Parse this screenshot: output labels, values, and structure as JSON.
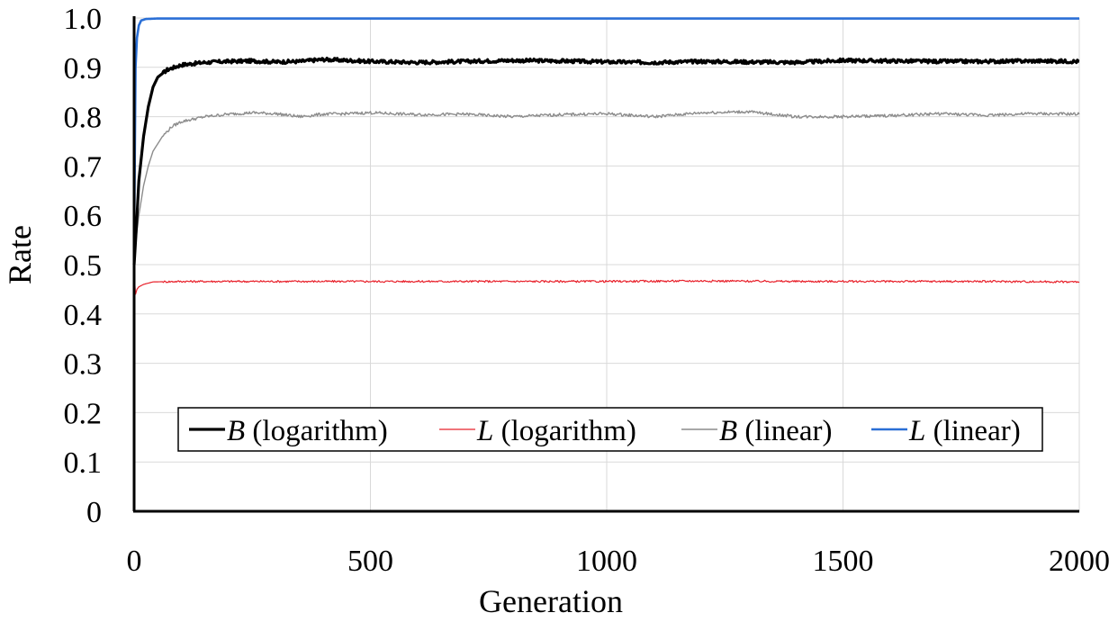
{
  "chart_data": {
    "type": "line",
    "xlabel": "Generation",
    "ylabel": "Rate",
    "xlim": [
      0,
      2000
    ],
    "ylim": [
      0,
      1.0
    ],
    "x_ticks": [
      0,
      500,
      1000,
      1500,
      2000
    ],
    "x_tick_labels": [
      "0",
      "500",
      "1000",
      "1500",
      "2000"
    ],
    "y_ticks": [
      0,
      0.1,
      0.2,
      0.3,
      0.4,
      0.5,
      0.6,
      0.7,
      0.8,
      0.9,
      1.0
    ],
    "y_tick_labels": [
      "0",
      "0.1",
      "0.2",
      "0.3",
      "0.4",
      "0.5",
      "0.6",
      "0.7",
      "0.8",
      "0.9",
      "1.0"
    ],
    "grid": true,
    "legend_position": "bottom-center",
    "series": [
      {
        "name": "B (logarithm)",
        "legend_letter": "B",
        "legend_rest": " (logarithm)",
        "color": "#000000",
        "x": [
          0,
          5,
          10,
          20,
          30,
          40,
          50,
          70,
          100,
          150,
          200,
          250,
          300,
          350,
          400,
          450,
          500,
          600,
          700,
          800,
          900,
          1000,
          1100,
          1200,
          1300,
          1400,
          1500,
          1600,
          1700,
          1800,
          1900,
          2000
        ],
        "y": [
          0.5,
          0.58,
          0.67,
          0.76,
          0.82,
          0.86,
          0.88,
          0.895,
          0.905,
          0.91,
          0.912,
          0.913,
          0.911,
          0.912,
          0.916,
          0.914,
          0.912,
          0.91,
          0.912,
          0.914,
          0.913,
          0.911,
          0.91,
          0.912,
          0.911,
          0.91,
          0.914,
          0.913,
          0.912,
          0.912,
          0.913,
          0.912
        ]
      },
      {
        "name": "L (logarithm)",
        "legend_letter": "L",
        "legend_rest": " (logarithm)",
        "color": "#e8202a",
        "x": [
          0,
          3,
          6,
          10,
          20,
          40,
          100,
          200,
          400,
          600,
          800,
          1000,
          1200,
          1400,
          1600,
          1800,
          2000
        ],
        "y": [
          0.48,
          0.44,
          0.45,
          0.455,
          0.46,
          0.465,
          0.466,
          0.466,
          0.466,
          0.466,
          0.466,
          0.466,
          0.467,
          0.466,
          0.466,
          0.466,
          0.465
        ]
      },
      {
        "name": "B (linear)",
        "legend_letter": "B",
        "legend_rest": " (linear)",
        "color": "#8c8c8c",
        "x": [
          0,
          5,
          10,
          20,
          30,
          40,
          60,
          80,
          100,
          150,
          200,
          250,
          300,
          350,
          400,
          450,
          500,
          600,
          700,
          800,
          900,
          1000,
          1100,
          1200,
          1300,
          1400,
          1500,
          1600,
          1700,
          1800,
          1900,
          2000
        ],
        "y": [
          0.5,
          0.56,
          0.6,
          0.66,
          0.7,
          0.73,
          0.76,
          0.78,
          0.79,
          0.8,
          0.805,
          0.808,
          0.806,
          0.8,
          0.805,
          0.806,
          0.808,
          0.804,
          0.805,
          0.8,
          0.804,
          0.806,
          0.8,
          0.808,
          0.81,
          0.8,
          0.8,
          0.802,
          0.806,
          0.803,
          0.806,
          0.805
        ]
      },
      {
        "name": "L (linear)",
        "legend_letter": "L",
        "legend_rest": " (linear)",
        "color": "#2a6fd6",
        "x": [
          0,
          3,
          6,
          10,
          15,
          25,
          50,
          100,
          500,
          1000,
          1500,
          2000
        ],
        "y": [
          0.55,
          0.9,
          0.96,
          0.985,
          0.995,
          0.998,
          0.999,
          0.999,
          0.999,
          0.999,
          0.999,
          0.999
        ]
      }
    ]
  }
}
